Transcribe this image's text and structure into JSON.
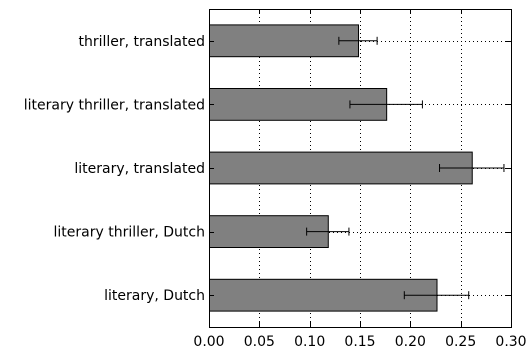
{
  "chart_data": {
    "type": "bar",
    "orientation": "horizontal",
    "title": "",
    "xlabel": "",
    "ylabel": "",
    "xlim": [
      0.0,
      0.3
    ],
    "x_ticks": [
      "0.00",
      "0.05",
      "0.10",
      "0.15",
      "0.20",
      "0.25",
      "0.30"
    ],
    "grid": true,
    "legend": "none",
    "bar_color": "#808080",
    "categories": [
      "thriller, translated",
      "literary thriller, translated",
      "literary, translated",
      "literary thriller, Dutch",
      "literary, Dutch"
    ],
    "values": [
      0.148,
      0.176,
      0.261,
      0.118,
      0.226
    ],
    "errors": [
      0.019,
      0.036,
      0.032,
      0.021,
      0.032
    ]
  }
}
